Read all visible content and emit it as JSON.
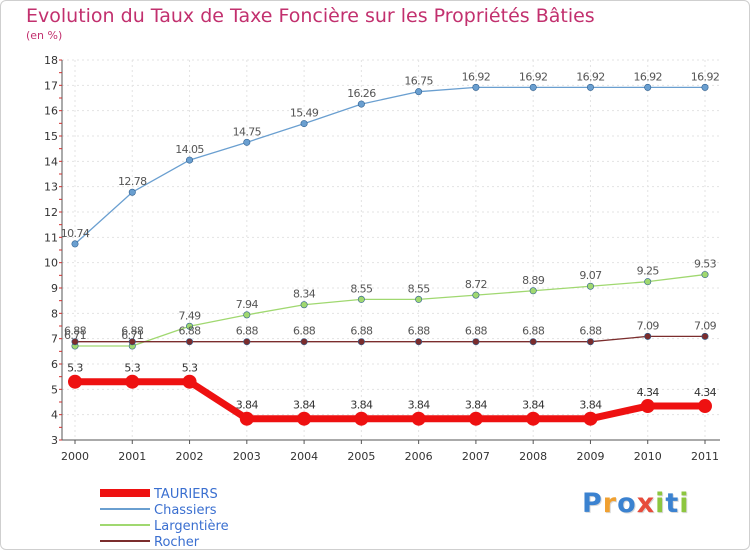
{
  "title": "Evolution du Taux de Taxe Foncière sur les Propriétés Bâties",
  "subtitle": "(en %)",
  "logo": {
    "text": "Proxiti",
    "colors": [
      "#3b82d0",
      "#f0a030",
      "#3b82d0",
      "#e74c3c",
      "#8dc63f",
      "#3b82d0",
      "#8dc63f"
    ]
  },
  "chart_data": {
    "type": "line",
    "x": [
      "2000",
      "2001",
      "2002",
      "2003",
      "2004",
      "2005",
      "2006",
      "2007",
      "2008",
      "2009",
      "2010",
      "2011"
    ],
    "ylim": [
      3,
      18
    ],
    "yticks": [
      "3",
      "4",
      "5",
      "6",
      "7",
      "8",
      "9",
      "10",
      "11",
      "12",
      "13",
      "14",
      "15",
      "16",
      "17",
      "18"
    ],
    "xlabel": "",
    "ylabel": "",
    "series": [
      {
        "name": "TAURIERS",
        "color": "#ee1111",
        "values": [
          5.3,
          5.3,
          5.3,
          3.84,
          3.84,
          3.84,
          3.84,
          3.84,
          3.84,
          3.84,
          4.34,
          4.34
        ],
        "labels": [
          "5.3",
          "5.3",
          "5.3",
          "3.84",
          "3.84",
          "3.84",
          "3.84",
          "3.84",
          "3.84",
          "3.84",
          "4.34",
          "4.34"
        ]
      },
      {
        "name": "Chassiers",
        "color": "#6a9fd0",
        "values": [
          10.74,
          12.78,
          14.05,
          14.75,
          15.49,
          16.26,
          16.75,
          16.92,
          16.92,
          16.92,
          16.92,
          16.92
        ],
        "labels": [
          "10.74",
          "12.78",
          "14.05",
          "14.75",
          "15.49",
          "16.26",
          "16.75",
          "16.92",
          "16.92",
          "16.92",
          "16.92",
          "16.92"
        ]
      },
      {
        "name": "Largentière",
        "color": "#a0d870",
        "values": [
          6.71,
          6.71,
          7.49,
          7.94,
          8.34,
          8.55,
          8.55,
          8.72,
          8.89,
          9.07,
          9.25,
          9.53
        ],
        "labels": [
          "6.71",
          "6.71",
          "7.49",
          "7.94",
          "8.34",
          "8.55",
          "8.55",
          "8.72",
          "8.89",
          "9.07",
          "9.25",
          "9.53"
        ]
      },
      {
        "name": "Rocher",
        "color": "#7b2d2d",
        "values": [
          6.88,
          6.88,
          6.88,
          6.88,
          6.88,
          6.88,
          6.88,
          6.88,
          6.88,
          6.88,
          7.09,
          7.09
        ],
        "labels": [
          "6.88",
          "6.88",
          "6.88",
          "6.88",
          "6.88",
          "6.88",
          "6.88",
          "6.88",
          "6.88",
          "6.88",
          "7.09",
          "7.09"
        ]
      }
    ]
  }
}
